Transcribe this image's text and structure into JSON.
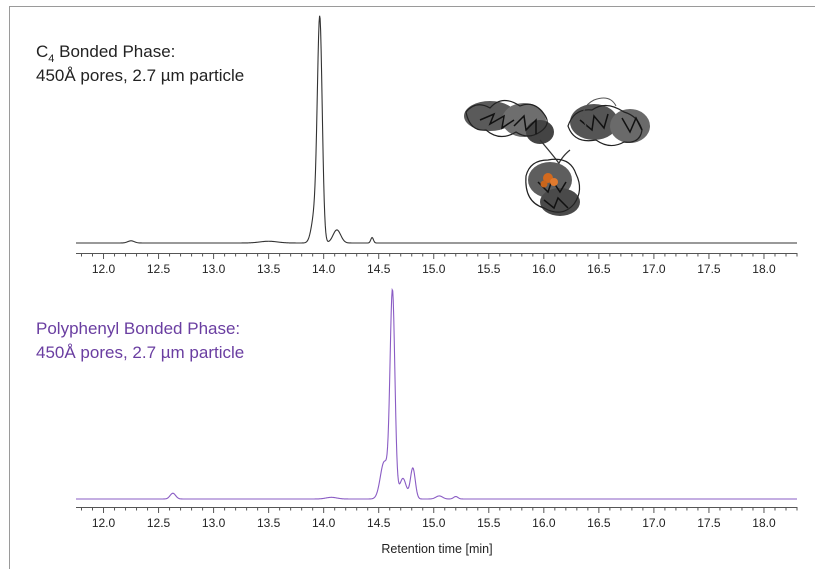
{
  "chart_data": [
    {
      "type": "line",
      "panel": "top",
      "label_line1_main": "C",
      "label_line1_sub": "4",
      "label_line1_rest": " Bonded Phase:",
      "label_line2": "450Å pores, 2.7 µm particle",
      "label_color": "#222222",
      "line_color": "#333333",
      "xlim": [
        11.75,
        18.3
      ],
      "xticks": [
        "12.0",
        "12.5",
        "13.0",
        "13.5",
        "14.0",
        "14.5",
        "15.0",
        "15.5",
        "16.0",
        "16.5",
        "17.0",
        "17.5",
        "18.0"
      ],
      "series": [
        {
          "peaks": [
            {
              "x": 12.25,
              "height": 0.01,
              "width": 0.03
            },
            {
              "x": 13.5,
              "height": 0.008,
              "width": 0.08
            },
            {
              "x": 13.92,
              "height": 0.13,
              "width": 0.03
            },
            {
              "x": 13.965,
              "height": 1.0,
              "width": 0.022
            },
            {
              "x": 14.12,
              "height": 0.06,
              "width": 0.035
            },
            {
              "x": 14.44,
              "height": 0.025,
              "width": 0.012
            }
          ],
          "baseline": 0.0
        }
      ],
      "inset_image": "protein-structure"
    },
    {
      "type": "line",
      "panel": "bottom",
      "label_line1": "Polyphenyl Bonded Phase:",
      "label_line2": "450Å pores, 2.7 µm particle",
      "label_color": "#6a3ea1",
      "line_color": "#8a5cc4",
      "xlim": [
        11.75,
        18.3
      ],
      "xticks": [
        "12.0",
        "12.5",
        "13.0",
        "13.5",
        "14.0",
        "14.5",
        "15.0",
        "15.5",
        "16.0",
        "16.5",
        "17.0",
        "17.5",
        "18.0"
      ],
      "xlabel": "Retention time [min]",
      "series": [
        {
          "peaks": [
            {
              "x": 12.63,
              "height": 0.028,
              "width": 0.025
            },
            {
              "x": 14.07,
              "height": 0.008,
              "width": 0.05
            },
            {
              "x": 14.55,
              "height": 0.18,
              "width": 0.035
            },
            {
              "x": 14.625,
              "height": 1.0,
              "width": 0.022
            },
            {
              "x": 14.72,
              "height": 0.1,
              "width": 0.03
            },
            {
              "x": 14.81,
              "height": 0.15,
              "width": 0.022
            },
            {
              "x": 15.05,
              "height": 0.015,
              "width": 0.03
            },
            {
              "x": 15.2,
              "height": 0.012,
              "width": 0.02
            }
          ],
          "baseline": 0.0
        }
      ]
    }
  ]
}
